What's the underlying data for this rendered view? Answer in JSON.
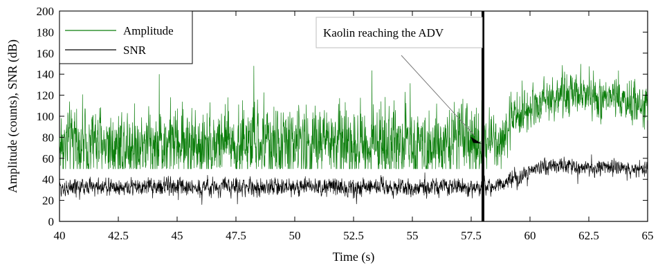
{
  "chart_data": {
    "type": "line",
    "xlabel": "Time (s)",
    "ylabel": "Amplitude (counts), SNR (dB)",
    "xlim": [
      40,
      65
    ],
    "ylim": [
      0,
      200
    ],
    "x_ticks": [
      40,
      42.5,
      45,
      47.5,
      50,
      52.5,
      55,
      57.5,
      60,
      62.5,
      65
    ],
    "x_tick_labels": [
      "40",
      "42.5",
      "45",
      "47.5",
      "50",
      "52.5",
      "55",
      "57.5",
      "60",
      "62.5",
      "65"
    ],
    "y_ticks": [
      0,
      20,
      40,
      60,
      80,
      100,
      120,
      140,
      160,
      180,
      200
    ],
    "y_tick_labels": [
      "0",
      "20",
      "40",
      "60",
      "80",
      "100",
      "120",
      "140",
      "160",
      "180",
      "200"
    ],
    "grid": false,
    "legend_position": "top-left",
    "series": [
      {
        "name": "Amplitude",
        "color": "#0a7d0a",
        "x": [
          40,
          41,
          42,
          43,
          44,
          45,
          46,
          47,
          48,
          49,
          50,
          51,
          52,
          53,
          54,
          55,
          56,
          57,
          58,
          58.5,
          59,
          59.5,
          60,
          60.5,
          61,
          61.5,
          62,
          62.5,
          63,
          63.5,
          64,
          64.5,
          65
        ],
        "mean": [
          74,
          75,
          75,
          74,
          75,
          75,
          74,
          75,
          75,
          74,
          75,
          75,
          74,
          75,
          75,
          74,
          75,
          75,
          75,
          78,
          88,
          100,
          110,
          116,
          118,
          120,
          119,
          118,
          116,
          115,
          113,
          112,
          110
        ],
        "spread": [
          30,
          30,
          30,
          30,
          30,
          30,
          30,
          30,
          30,
          30,
          30,
          30,
          30,
          30,
          30,
          30,
          30,
          30,
          30,
          24,
          20,
          18,
          17,
          17,
          17,
          17,
          17,
          17,
          17,
          17,
          17,
          17,
          17
        ],
        "peak_max": 158,
        "trough_min": 50
      },
      {
        "name": "SNR",
        "color": "#000000",
        "x": [
          40,
          41,
          42,
          43,
          44,
          45,
          46,
          47,
          48,
          49,
          50,
          51,
          52,
          53,
          54,
          55,
          56,
          57,
          58,
          58.5,
          59,
          59.5,
          60,
          60.5,
          61,
          61.5,
          62,
          62.5,
          63,
          63.5,
          64,
          64.5,
          65
        ],
        "mean": [
          32,
          33,
          33,
          32,
          33,
          33,
          32,
          33,
          33,
          32,
          33,
          33,
          32,
          33,
          33,
          32,
          33,
          33,
          33,
          34,
          37,
          42,
          48,
          51,
          52,
          52,
          52,
          51,
          51,
          50,
          50,
          50,
          50
        ],
        "spread": [
          7,
          7,
          7,
          7,
          7,
          7,
          7,
          7,
          7,
          7,
          7,
          7,
          7,
          7,
          7,
          7,
          7,
          7,
          7,
          7,
          7,
          7,
          6,
          6,
          6,
          6,
          6,
          6,
          6,
          6,
          6,
          6,
          6
        ],
        "peak_max": 68,
        "trough_min": 15
      }
    ],
    "vertical_marker": {
      "x": 58,
      "color": "#000000"
    },
    "annotation": {
      "text": "Kaolin reaching the ADV",
      "arrow_target_x": 58,
      "arrow_target_y": 74
    }
  }
}
